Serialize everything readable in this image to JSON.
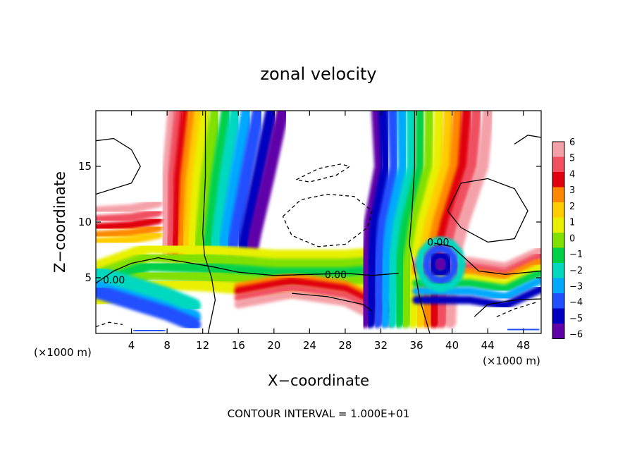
{
  "chart_data": {
    "type": "heatmap",
    "title": "zonal velocity",
    "xlabel": "X−coordinate",
    "ylabel": "Z−coordinate",
    "x_unit_left": "(×1000 m)",
    "x_unit_right": "(×1000 m)",
    "footer": "CONTOUR INTERVAL = 1.000E+01",
    "xlim": [
      0,
      50
    ],
    "ylim": [
      0,
      20
    ],
    "x_ticks": [
      4,
      8,
      12,
      16,
      20,
      24,
      28,
      32,
      36,
      40,
      44,
      48
    ],
    "x_tick_labels": [
      "4",
      "8",
      "12",
      "16",
      "20",
      "24",
      "28",
      "32",
      "36",
      "40",
      "44",
      "48"
    ],
    "y_ticks": [
      5,
      10,
      15
    ],
    "y_tick_labels": [
      "5",
      "10",
      "15"
    ],
    "colorbar": {
      "levels": [
        6,
        5,
        4,
        3,
        2,
        1,
        0,
        -1,
        -2,
        -3,
        -4,
        -5,
        -6
      ],
      "labels": [
        "6",
        "5",
        "4",
        "3",
        "2",
        "1",
        "0",
        "−1",
        "−2",
        "−3",
        "−4",
        "−5",
        "−6"
      ],
      "colors": [
        "#f4a0a8",
        "#f05060",
        "#e00010",
        "#ff8800",
        "#ffcc00",
        "#e8f000",
        "#80e000",
        "#00d048",
        "#00d8c0",
        "#00a8ff",
        "#2050ff",
        "#0000c0",
        "#6000a8"
      ]
    },
    "contour_labels": [
      {
        "x": 0.8,
        "y": 4.8,
        "text": "0.00"
      },
      {
        "x": 25.7,
        "y": 5.3,
        "text": "0.00"
      },
      {
        "x": 37.2,
        "y": 8.2,
        "text": "0.00"
      }
    ]
  }
}
